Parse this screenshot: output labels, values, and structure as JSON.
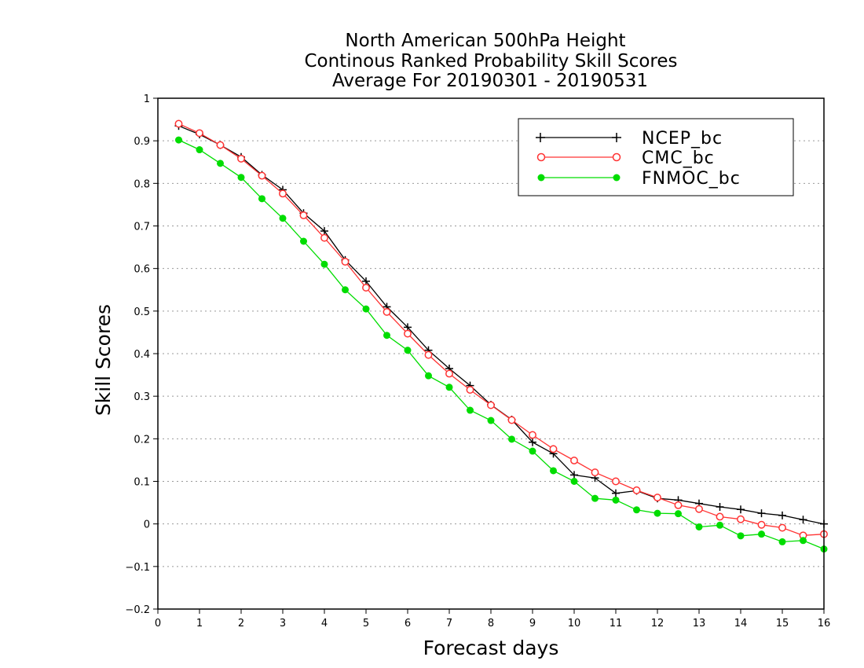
{
  "chart_data": {
    "type": "line",
    "title": [
      "North American 500hPa Height",
      "Continous Ranked Probability Skill Scores",
      "Average For 20190301 - 20190531"
    ],
    "xlabel": "Forecast days",
    "ylabel": "Skill Scores",
    "xlim": [
      0,
      16
    ],
    "ylim": [
      -0.2,
      1
    ],
    "xticks": [
      "0",
      "1",
      "2",
      "3",
      "4",
      "5",
      "6",
      "7",
      "8",
      "9",
      "10",
      "11",
      "12",
      "13",
      "14",
      "15",
      "16"
    ],
    "yticks": [
      "−0.2",
      "−0.1",
      "0",
      "0.1",
      "0.2",
      "0.3",
      "0.4",
      "0.5",
      "0.6",
      "0.7",
      "0.8",
      "0.9",
      "1"
    ],
    "grid": "horizontal dotted",
    "legend_position": "top-right",
    "x": [
      0.5,
      1,
      1.5,
      2,
      2.5,
      3,
      3.5,
      4,
      4.5,
      5,
      5.5,
      6,
      6.5,
      7,
      7.5,
      8,
      8.5,
      9,
      9.5,
      10,
      10.5,
      11,
      11.5,
      12,
      12.5,
      13,
      13.5,
      14,
      14.5,
      15,
      15.5,
      16
    ],
    "series": [
      {
        "name": "NCEP_bc",
        "color": "#000000",
        "marker": "plus",
        "values": [
          0.935,
          0.915,
          0.89,
          0.862,
          0.82,
          0.785,
          0.73,
          0.688,
          0.62,
          0.57,
          0.51,
          0.462,
          0.408,
          0.365,
          0.325,
          0.28,
          0.245,
          0.192,
          0.165,
          0.115,
          0.108,
          0.072,
          0.078,
          0.06,
          0.056,
          0.048,
          0.04,
          0.034,
          0.025,
          0.02,
          0.01,
          0.0
        ]
      },
      {
        "name": "CMC_bc",
        "color": "#ff3333",
        "marker": "open-circle",
        "values": [
          0.94,
          0.918,
          0.89,
          0.858,
          0.818,
          0.776,
          0.725,
          0.672,
          0.616,
          0.555,
          0.498,
          0.447,
          0.397,
          0.353,
          0.315,
          0.279,
          0.244,
          0.209,
          0.176,
          0.149,
          0.121,
          0.1,
          0.079,
          0.062,
          0.044,
          0.035,
          0.017,
          0.011,
          -0.002,
          -0.009,
          -0.027,
          -0.024
        ]
      },
      {
        "name": "FNMOC_bc",
        "color": "#00dd00",
        "marker": "filled-circle",
        "values": [
          0.902,
          0.879,
          0.847,
          0.814,
          0.764,
          0.718,
          0.664,
          0.61,
          0.55,
          0.505,
          0.443,
          0.408,
          0.348,
          0.321,
          0.267,
          0.243,
          0.199,
          0.171,
          0.125,
          0.1,
          0.06,
          0.056,
          0.033,
          0.025,
          0.024,
          -0.007,
          -0.003,
          -0.028,
          -0.024,
          -0.042,
          -0.039,
          -0.059
        ]
      }
    ]
  }
}
